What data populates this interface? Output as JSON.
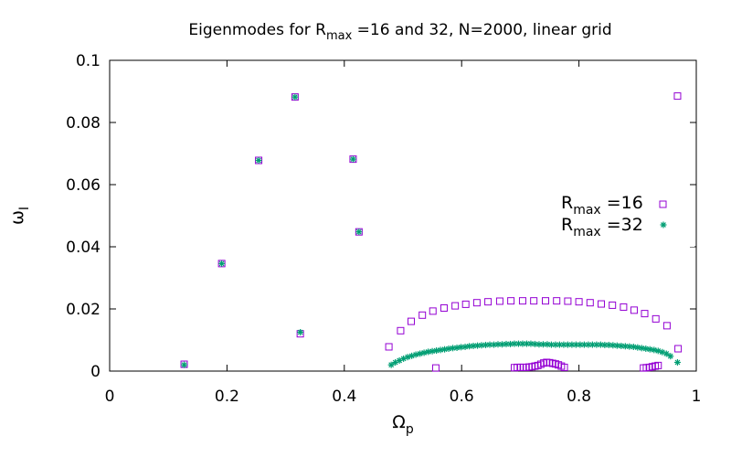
{
  "chart_data": {
    "type": "scatter",
    "title": {
      "pre": "Eigenmodes for R",
      "sub": "max",
      "post": " =16 and 32, N=2000, linear grid"
    },
    "xlabel": {
      "main": "Ω",
      "sub": "p"
    },
    "ylabel": {
      "main": "ω",
      "sub": "I"
    },
    "xlim": [
      0,
      1
    ],
    "ylim": [
      0,
      0.1
    ],
    "xticks": [
      0,
      0.2,
      0.4,
      0.6,
      0.8,
      1
    ],
    "xtick_labels": [
      "0",
      "0.2",
      "0.4",
      "0.6",
      "0.8",
      "1"
    ],
    "yticks": [
      0,
      0.02,
      0.04,
      0.06,
      0.08,
      0.1
    ],
    "ytick_labels": [
      "0",
      "0.02",
      "0.04",
      "0.06",
      "0.08",
      "0.1"
    ],
    "grid": false,
    "legend_position": "right",
    "series": [
      {
        "name": "R_max=16",
        "label": {
          "main": "R",
          "sub": "max",
          "post": " =16"
        },
        "marker": "open-square",
        "color": "#9400d3",
        "x": [
          0.127,
          0.191,
          0.254,
          0.316,
          0.325,
          0.415,
          0.425,
          0.476,
          0.496,
          0.514,
          0.533,
          0.551,
          0.57,
          0.589,
          0.607,
          0.626,
          0.645,
          0.665,
          0.684,
          0.704,
          0.723,
          0.743,
          0.762,
          0.781,
          0.8,
          0.819,
          0.838,
          0.857,
          0.876,
          0.894,
          0.912,
          0.931,
          0.95,
          0.969,
          0.556,
          0.69,
          0.695,
          0.7,
          0.705,
          0.71,
          0.715,
          0.72,
          0.725,
          0.73,
          0.735,
          0.74,
          0.745,
          0.75,
          0.755,
          0.76,
          0.765,
          0.77,
          0.775,
          0.91,
          0.915,
          0.92,
          0.925,
          0.93,
          0.935,
          0.968
        ],
        "y": [
          0.0022,
          0.0346,
          0.0678,
          0.0882,
          0.012,
          0.0682,
          0.0448,
          0.0078,
          0.013,
          0.016,
          0.018,
          0.0193,
          0.0203,
          0.021,
          0.0215,
          0.022,
          0.0223,
          0.0225,
          0.0226,
          0.0226,
          0.0226,
          0.0226,
          0.0226,
          0.0225,
          0.0223,
          0.022,
          0.0216,
          0.0212,
          0.0206,
          0.0196,
          0.0185,
          0.0168,
          0.0146,
          0.0072,
          0.001,
          0.0011,
          0.0012,
          0.0012,
          0.0012,
          0.0012,
          0.0013,
          0.0014,
          0.0016,
          0.0018,
          0.0022,
          0.0026,
          0.0028,
          0.0027,
          0.0025,
          0.0023,
          0.002,
          0.0016,
          0.0012,
          0.001,
          0.0011,
          0.0012,
          0.0014,
          0.0016,
          0.0018,
          0.0885
        ]
      },
      {
        "name": "R_max=32",
        "label": {
          "main": "R",
          "sub": "max",
          "post": " =32"
        },
        "marker": "star",
        "color": "#009e73",
        "x": [
          0.127,
          0.191,
          0.254,
          0.316,
          0.325,
          0.415,
          0.425,
          0.48,
          0.487,
          0.494,
          0.501,
          0.508,
          0.515,
          0.522,
          0.529,
          0.536,
          0.543,
          0.55,
          0.557,
          0.564,
          0.571,
          0.578,
          0.585,
          0.592,
          0.599,
          0.606,
          0.613,
          0.62,
          0.627,
          0.634,
          0.641,
          0.648,
          0.655,
          0.662,
          0.669,
          0.676,
          0.683,
          0.69,
          0.697,
          0.704,
          0.711,
          0.718,
          0.725,
          0.732,
          0.739,
          0.746,
          0.753,
          0.76,
          0.767,
          0.774,
          0.781,
          0.788,
          0.795,
          0.802,
          0.809,
          0.816,
          0.823,
          0.83,
          0.837,
          0.844,
          0.851,
          0.858,
          0.865,
          0.872,
          0.879,
          0.886,
          0.893,
          0.9,
          0.907,
          0.914,
          0.921,
          0.928,
          0.935,
          0.942,
          0.949,
          0.956,
          0.968
        ],
        "y": [
          0.002,
          0.0346,
          0.0678,
          0.0882,
          0.0125,
          0.0682,
          0.0448,
          0.002,
          0.0028,
          0.0034,
          0.004,
          0.0045,
          0.0049,
          0.0053,
          0.0056,
          0.0059,
          0.0062,
          0.0064,
          0.0066,
          0.0068,
          0.007,
          0.0072,
          0.0074,
          0.0075,
          0.0077,
          0.0078,
          0.008,
          0.0081,
          0.0082,
          0.0083,
          0.0084,
          0.0085,
          0.0085,
          0.0086,
          0.0086,
          0.0087,
          0.0087,
          0.0088,
          0.0088,
          0.0088,
          0.0088,
          0.0088,
          0.0087,
          0.0086,
          0.0086,
          0.0086,
          0.0085,
          0.0085,
          0.0085,
          0.0085,
          0.0085,
          0.0085,
          0.0085,
          0.0085,
          0.0085,
          0.0085,
          0.0085,
          0.0085,
          0.0085,
          0.0084,
          0.0084,
          0.0083,
          0.0082,
          0.0081,
          0.008,
          0.0079,
          0.0078,
          0.0076,
          0.0074,
          0.0072,
          0.007,
          0.0068,
          0.0065,
          0.0061,
          0.0056,
          0.0048,
          0.0028
        ]
      }
    ]
  }
}
